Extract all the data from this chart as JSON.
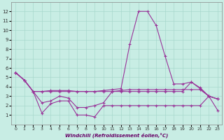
{
  "xlabel": "Windchill (Refroidissement éolien,°C)",
  "xlim": [
    -0.5,
    23.5
  ],
  "ylim": [
    0,
    13
  ],
  "xticks": [
    0,
    1,
    2,
    3,
    4,
    5,
    6,
    7,
    8,
    9,
    10,
    11,
    12,
    13,
    14,
    15,
    16,
    17,
    18,
    19,
    20,
    21,
    22,
    23
  ],
  "yticks": [
    1,
    2,
    3,
    4,
    5,
    6,
    7,
    8,
    9,
    10,
    11,
    12
  ],
  "bg_color": "#c8ede4",
  "grid_color": "#a8d8cc",
  "line_color": "#993399",
  "series": [
    {
      "x": [
        0,
        1,
        2,
        3,
        4,
        5,
        6,
        7,
        8,
        9,
        10,
        11,
        12,
        13,
        14,
        15,
        16,
        17,
        18,
        19,
        20,
        21,
        22,
        23
      ],
      "y": [
        5.5,
        4.7,
        3.5,
        3.5,
        3.6,
        3.6,
        3.6,
        3.5,
        3.5,
        3.5,
        3.6,
        3.7,
        3.8,
        8.5,
        12.0,
        12.0,
        10.5,
        7.3,
        4.3,
        4.3,
        4.5,
        3.9,
        3.0,
        2.7
      ]
    },
    {
      "x": [
        0,
        1,
        2,
        3,
        4,
        5,
        6,
        7,
        8,
        9,
        10,
        11,
        12,
        13,
        14,
        15,
        16,
        17,
        18,
        19,
        20,
        21,
        22,
        23
      ],
      "y": [
        5.5,
        4.7,
        3.5,
        3.5,
        3.5,
        3.5,
        3.5,
        3.5,
        3.5,
        3.5,
        3.5,
        3.5,
        3.5,
        3.5,
        3.5,
        3.5,
        3.5,
        3.5,
        3.5,
        3.5,
        4.5,
        3.8,
        3.0,
        2.7
      ]
    },
    {
      "x": [
        0,
        1,
        2,
        3,
        4,
        5,
        6,
        7,
        8,
        9,
        10,
        11,
        12,
        13,
        14,
        15,
        16,
        17,
        18,
        19,
        20,
        21,
        22,
        23
      ],
      "y": [
        5.5,
        4.7,
        3.5,
        2.3,
        2.5,
        3.0,
        2.8,
        1.8,
        1.8,
        2.0,
        2.3,
        3.5,
        3.6,
        3.7,
        3.7,
        3.7,
        3.7,
        3.7,
        3.7,
        3.7,
        3.7,
        3.7,
        3.0,
        2.7
      ]
    },
    {
      "x": [
        0,
        1,
        2,
        3,
        4,
        5,
        6,
        7,
        8,
        9,
        10,
        11,
        12,
        13,
        14,
        15,
        16,
        17,
        18,
        19,
        20,
        21,
        22,
        23
      ],
      "y": [
        5.5,
        4.7,
        3.5,
        1.2,
        2.2,
        2.5,
        2.5,
        1.0,
        1.0,
        0.8,
        2.0,
        2.0,
        2.0,
        2.0,
        2.0,
        2.0,
        2.0,
        2.0,
        2.0,
        2.0,
        2.0,
        2.0,
        3.0,
        1.5
      ]
    }
  ]
}
